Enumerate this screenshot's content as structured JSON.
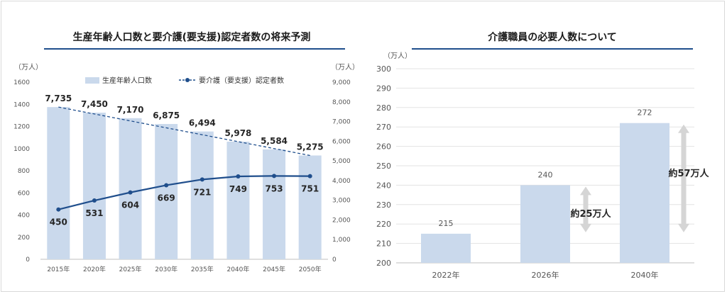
{
  "left_panel": {
    "title": "生産年齢人口数と要介護(要支援)認定者数の将来予測"
  },
  "right_panel": {
    "title": "介護職員の必要人数について"
  },
  "colors": {
    "bar": "#cad9ec",
    "line": "#1f4e8c",
    "rule": "#1f4e8c",
    "arrow": "#d5d5d5"
  },
  "chart_data": [
    {
      "type": "bar+line",
      "categories": [
        "2015年",
        "2020年",
        "2025年",
        "2030年",
        "2035年",
        "2040年",
        "2045年",
        "2050年"
      ],
      "y_left": {
        "unit": "（万人）",
        "ylim": [
          0,
          1600
        ],
        "ticks": [
          "0",
          "200",
          "400",
          "600",
          "800",
          "1000",
          "1200",
          "1400",
          "1600"
        ]
      },
      "y_right": {
        "unit": "（万人）",
        "ylim": [
          0,
          9000
        ],
        "ticks": [
          "0",
          "1,000",
          "2,000",
          "3,000",
          "4,000",
          "5,000",
          "6,000",
          "7,000",
          "8,000",
          "9,000"
        ]
      },
      "legend": {
        "placement": "top",
        "bar_label": "生産年齢人口数",
        "line_label": "要介護（要支援）認定者数"
      },
      "bars": {
        "name": "生産年齢人口数",
        "axis": "right",
        "values": [
          7735,
          7450,
          7170,
          6875,
          6494,
          5978,
          5584,
          5275
        ],
        "labels": [
          "7,735",
          "7,450",
          "7,170",
          "6,875",
          "6,494",
          "5,978",
          "5,584",
          "5,275"
        ]
      },
      "line": {
        "name": "要介護（要支援）認定者数",
        "axis": "left",
        "values": [
          450,
          531,
          604,
          669,
          721,
          749,
          753,
          751
        ],
        "labels": [
          "450",
          "531",
          "604",
          "669",
          "721",
          "749",
          "753",
          "751"
        ]
      },
      "trendline": {
        "style": "dashed",
        "from": 7735,
        "to": 5275
      },
      "grid": false
    },
    {
      "type": "bar",
      "categories": [
        "2022年",
        "2026年",
        "2040年"
      ],
      "values": [
        215,
        240,
        272
      ],
      "labels": [
        "215",
        "240",
        "272"
      ],
      "y_unit": "（万人）",
      "ylim": [
        200,
        300
      ],
      "ticks": [
        "200",
        "210",
        "220",
        "230",
        "240",
        "250",
        "260",
        "270",
        "280",
        "290",
        "300"
      ],
      "grid": true,
      "annotations": [
        {
          "text": "約25万人",
          "from": 215,
          "to": 240
        },
        {
          "text": "約57万人",
          "from": 215,
          "to": 272
        }
      ]
    }
  ]
}
